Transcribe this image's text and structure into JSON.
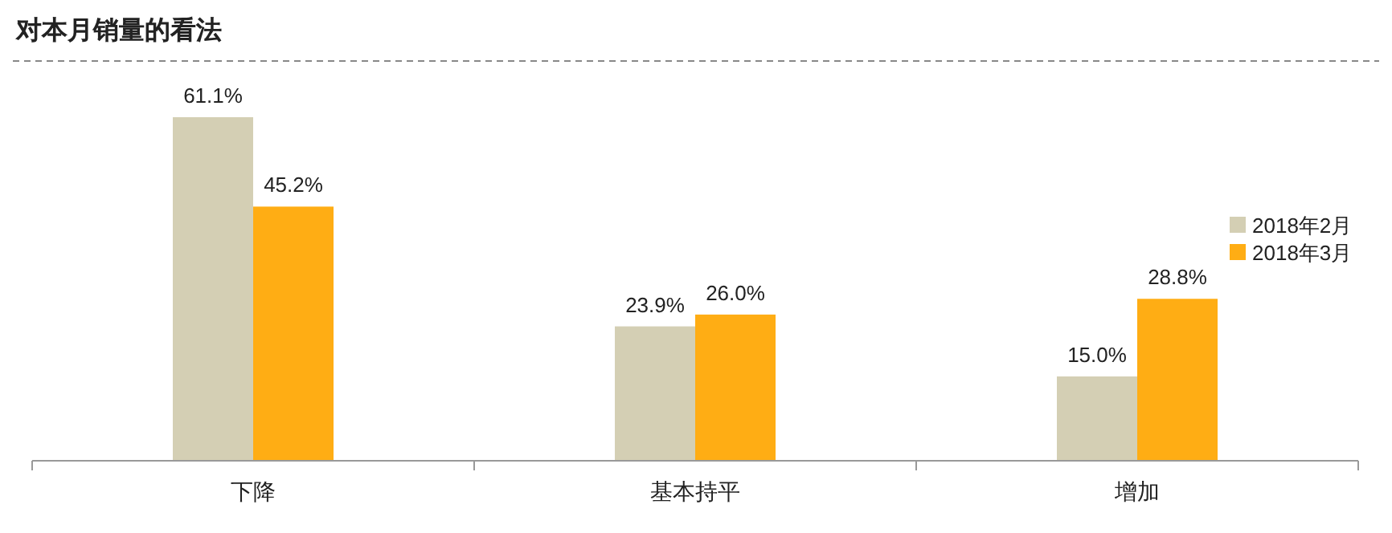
{
  "chart_data": {
    "type": "bar",
    "title": "对本月销量的看法",
    "categories": [
      "下降",
      "基本持平",
      "增加"
    ],
    "series": [
      {
        "name": "2018年2月",
        "color": "#d4cfb4",
        "values": [
          61.1,
          23.9,
          15.0
        ],
        "value_labels": [
          "61.1%",
          "23.9%",
          "15.0%"
        ]
      },
      {
        "name": "2018年3月",
        "color": "#ffad14",
        "values": [
          45.2,
          26.0,
          28.8
        ],
        "value_labels": [
          "45.2%",
          "26.0%",
          "28.8%"
        ]
      }
    ],
    "legend": "right"
  }
}
